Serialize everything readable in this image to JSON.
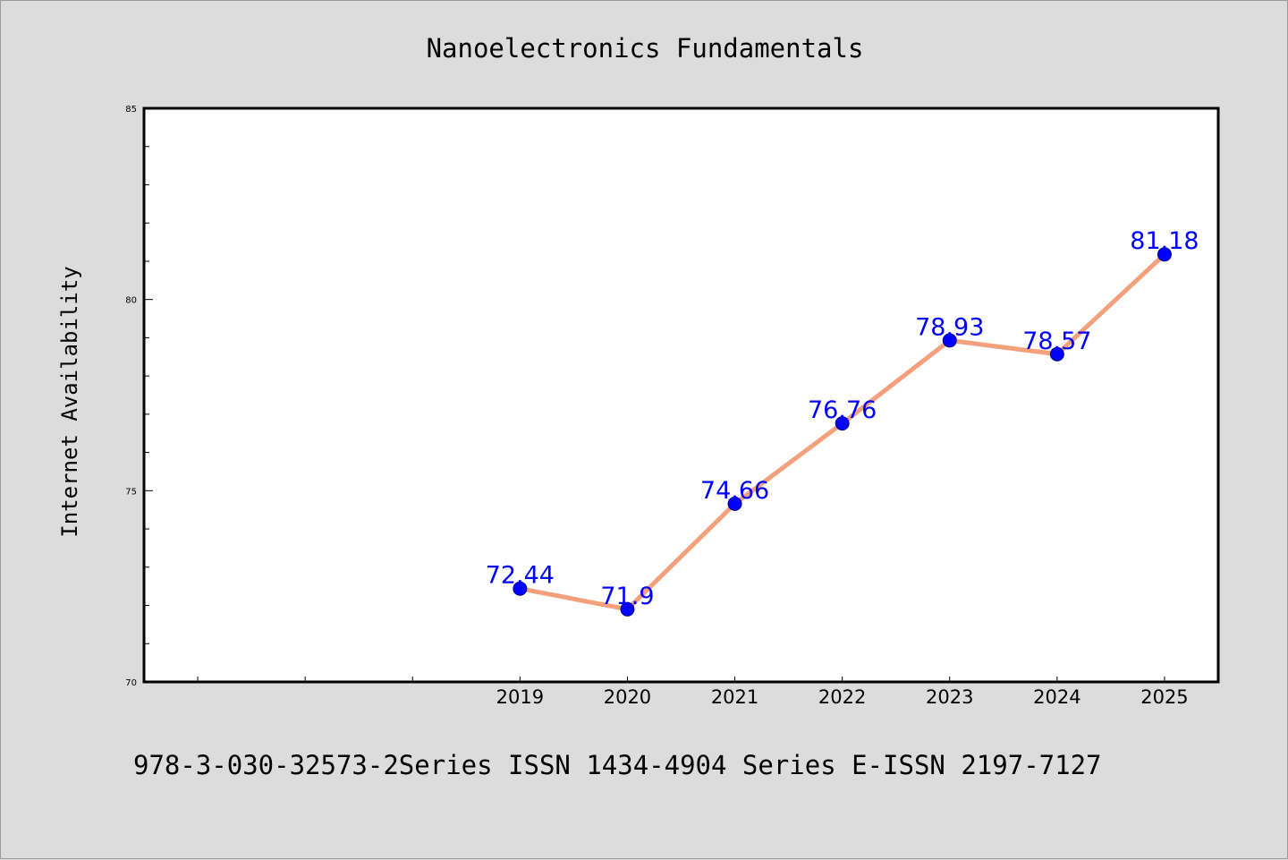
{
  "chart_data": {
    "type": "line",
    "title": "Nanoelectronics Fundamentals",
    "xlabel": "",
    "ylabel": "Internet Availability",
    "x": [
      "2019",
      "2020",
      "2021",
      "2022",
      "2023",
      "2024",
      "2025"
    ],
    "series": [
      {
        "values": [
          72.44,
          71.9,
          74.66,
          76.76,
          78.93,
          78.57,
          81.18
        ]
      }
    ],
    "data_labels": [
      "72.44",
      "71.9",
      "74.66",
      "76.76",
      "78.93",
      "78.57",
      "81.18"
    ],
    "ylim": [
      70,
      85
    ],
    "xlim": [
      2015.5,
      2025.5
    ],
    "y_ticks": [
      "70",
      "75",
      "80",
      "85"
    ],
    "grid": false,
    "colors": {
      "line": "#f4a07c",
      "marker": "#0000ff",
      "label": "#0000ff",
      "background": "#dcdcdc",
      "plot_background": "#ffffff"
    }
  },
  "footer": {
    "text": "978-3-030-32573-2Series ISSN 1434-4904 Series E-ISSN 2197-7127"
  }
}
